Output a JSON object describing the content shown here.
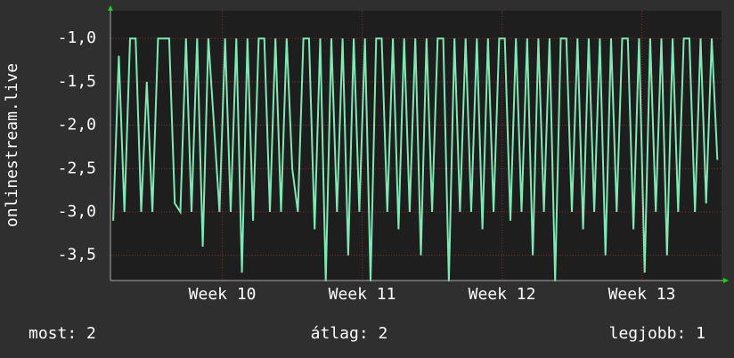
{
  "chart_data": {
    "type": "line",
    "y_label": "onlinestream.live",
    "ylim": [
      -3.79,
      -0.68
    ],
    "yticks": [
      {
        "value": -1,
        "label": "-1,0"
      },
      {
        "value": -1.5,
        "label": "-1,5"
      },
      {
        "value": -2,
        "label": "-2,0"
      },
      {
        "value": -2.5,
        "label": "-2,5"
      },
      {
        "value": -3,
        "label": "-3,0"
      },
      {
        "value": -3.5,
        "label": "-3,5"
      }
    ],
    "xlim": [
      9.2,
      13.57
    ],
    "xticks": [
      {
        "value": 10,
        "label": "Week 10"
      },
      {
        "value": 11,
        "label": "Week 11"
      },
      {
        "value": 12,
        "label": "Week 12"
      },
      {
        "value": 13,
        "label": "Week 13"
      }
    ],
    "grid": true,
    "x": [
      9.22,
      9.26,
      9.3,
      9.34,
      9.38,
      9.42,
      9.46,
      9.5,
      9.54,
      9.58,
      9.62,
      9.66,
      9.7,
      9.74,
      9.78,
      9.82,
      9.86,
      9.9,
      9.94,
      9.98,
      10.02,
      10.06,
      10.1,
      10.14,
      10.18,
      10.22,
      10.26,
      10.3,
      10.34,
      10.38,
      10.42,
      10.46,
      10.5,
      10.54,
      10.58,
      10.62,
      10.66,
      10.7,
      10.74,
      10.78,
      10.82,
      10.86,
      10.9,
      10.94,
      10.98,
      11.02,
      11.06,
      11.1,
      11.14,
      11.18,
      11.22,
      11.26,
      11.3,
      11.34,
      11.38,
      11.42,
      11.46,
      11.5,
      11.54,
      11.58,
      11.62,
      11.66,
      11.7,
      11.74,
      11.78,
      11.82,
      11.86,
      11.9,
      11.94,
      11.98,
      12.02,
      12.06,
      12.1,
      12.14,
      12.18,
      12.22,
      12.26,
      12.3,
      12.34,
      12.38,
      12.42,
      12.46,
      12.5,
      12.54,
      12.58,
      12.62,
      12.66,
      12.7,
      12.74,
      12.78,
      12.82,
      12.86,
      12.9,
      12.94,
      12.98,
      13.02,
      13.06,
      13.1,
      13.14,
      13.18,
      13.22,
      13.26,
      13.3,
      13.34,
      13.38,
      13.42,
      13.46,
      13.5,
      13.54
    ],
    "series": [
      {
        "name": "onlinestream.live",
        "color": "#7fe8b4",
        "values": [
          -3.1,
          -1.2,
          -3,
          -1,
          -1,
          -3,
          -1.5,
          -3,
          -1,
          -1,
          -1,
          -2.9,
          -3,
          -1,
          -3,
          -1,
          -3.4,
          -1,
          -2,
          -3,
          -1,
          -3,
          -1,
          -3.7,
          -1,
          -3.1,
          -1,
          -1,
          -3,
          -1,
          -3,
          -1,
          -2.5,
          -3,
          -1,
          -1,
          -3.2,
          -1,
          -3.8,
          -1,
          -3,
          -1,
          -3.5,
          -1,
          -3,
          -1,
          -3.8,
          -1,
          -1,
          -3,
          -1,
          -3.2,
          -1,
          -3,
          -1,
          -3.5,
          -1,
          -3,
          -1,
          -1,
          -3.8,
          -1,
          -3,
          -1,
          -3,
          -1,
          -3.2,
          -1,
          -3,
          -1,
          -1,
          -3.1,
          -1,
          -3,
          -1,
          -3.5,
          -1,
          -3,
          -1,
          -3.8,
          -1,
          -1,
          -3,
          -1,
          -3.2,
          -1,
          -3,
          -1,
          -3.5,
          -1,
          -3,
          -1,
          -1,
          -3.2,
          -1,
          -3.7,
          -1,
          -3,
          -1,
          -3.5,
          -1,
          -3,
          -1,
          -1,
          -3,
          -1,
          -2.9,
          -1,
          -2.4
        ]
      }
    ],
    "footer": {
      "current": "most: 2",
      "average": "átlag: 2",
      "best": "legjobb: 1"
    }
  }
}
